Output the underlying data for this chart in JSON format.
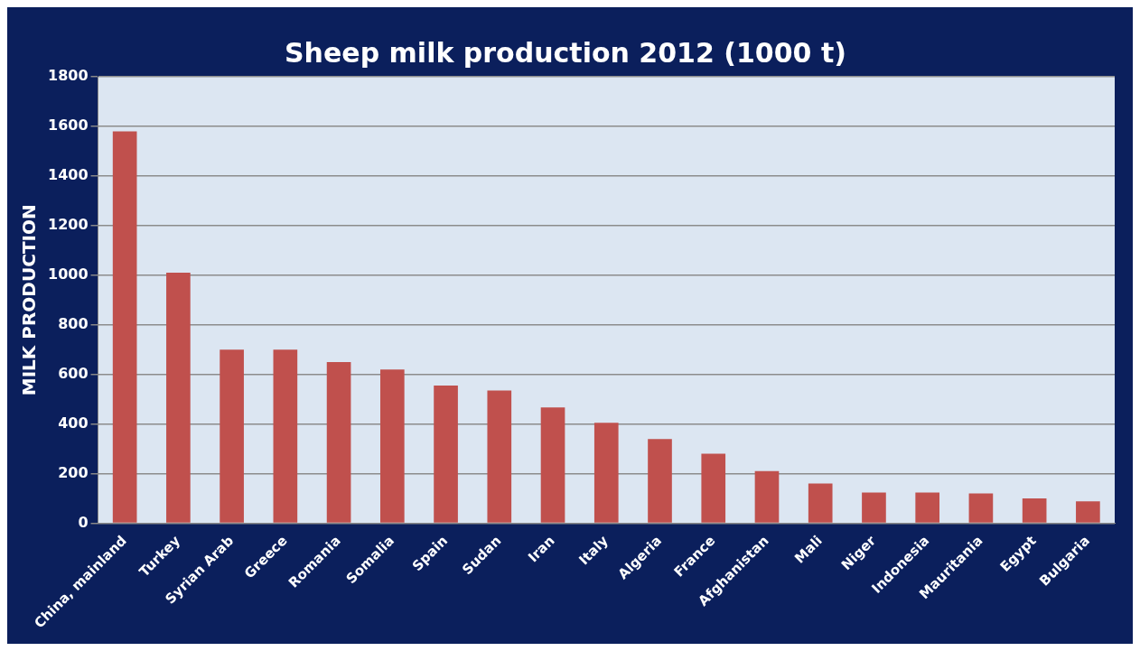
{
  "chart_data": {
    "type": "bar",
    "title": "Sheep milk production 2012 (1000 t)",
    "ylabel": "MILK PRODUCTION",
    "categories": [
      "China, mainland",
      "Turkey",
      "Syrian Arab",
      "Greece",
      "Romania",
      "Somalia",
      "Spain",
      "Sudan",
      "Iran",
      "Italy",
      "Algeria",
      "France",
      "Afghanistan",
      "Mali",
      "Niger",
      "Indonesia",
      "Mauritania",
      "Egypt",
      "Bulgaria"
    ],
    "values": [
      1580,
      1010,
      700,
      700,
      650,
      620,
      555,
      535,
      467,
      405,
      340,
      280,
      210,
      160,
      124,
      124,
      120,
      100,
      88
    ],
    "color": "#c0504d",
    "ylim": [
      0,
      1800
    ],
    "yticks": [
      0,
      200,
      400,
      600,
      800,
      1000,
      1200,
      1400,
      1600,
      1800
    ],
    "grid": "y",
    "legend": false
  }
}
